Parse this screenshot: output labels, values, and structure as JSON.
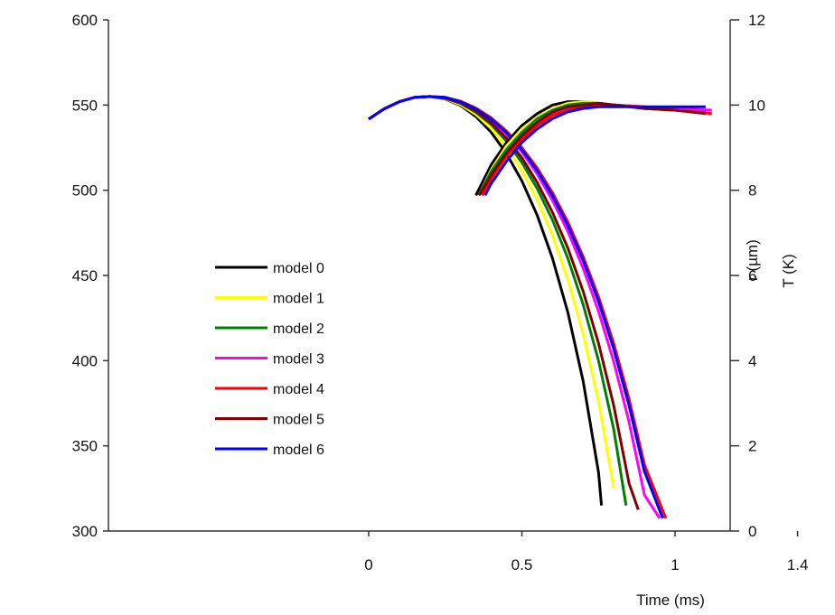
{
  "chart_data": {
    "type": "line",
    "xlabel": "Time (ms)",
    "ylabel_left": "",
    "ylabel_right": "r (µm)",
    "ylabel_right_2": "T (K)",
    "xlim": [
      0,
      1.4
    ],
    "ylim_left": [
      300,
      600
    ],
    "ylim_right": [
      0,
      12
    ],
    "x_ticks": [
      "0",
      "0.5",
      "1",
      "1.4"
    ],
    "y_left_ticks": [
      "300",
      "350",
      "400",
      "450",
      "500",
      "550",
      "600"
    ],
    "y_right_ticks": [
      "0",
      "2",
      "4",
      "6",
      "8",
      "10",
      "12"
    ],
    "legend": [
      "model 0",
      "model 1",
      "model 2",
      "model 3",
      "model 4",
      "model 5",
      "model 6"
    ],
    "colors": [
      "#000000",
      "#ffff00",
      "#008000",
      "#ff00ff",
      "#ff0000",
      "#800000",
      "#0000ff"
    ],
    "radius_axis": "right",
    "temperature_axis": "left",
    "radius_series": [
      {
        "name": "model 0",
        "x": [
          0,
          0.05,
          0.1,
          0.15,
          0.2,
          0.25,
          0.3,
          0.35,
          0.4,
          0.45,
          0.5,
          0.55,
          0.6,
          0.65,
          0.7,
          0.75,
          0.76
        ],
        "y": [
          9.67,
          9.91,
          10.08,
          10.18,
          10.2,
          10.14,
          9.99,
          9.73,
          9.36,
          8.86,
          8.22,
          7.41,
          6.4,
          5.13,
          3.52,
          1.38,
          0.6
        ]
      },
      {
        "name": "model 1",
        "x": [
          0,
          0.05,
          0.1,
          0.15,
          0.2,
          0.25,
          0.3,
          0.35,
          0.4,
          0.45,
          0.5,
          0.55,
          0.6,
          0.65,
          0.7,
          0.75,
          0.8
        ],
        "y": [
          9.67,
          9.91,
          10.08,
          10.18,
          10.2,
          10.15,
          10.01,
          9.78,
          9.45,
          9.02,
          8.46,
          7.78,
          6.93,
          5.9,
          4.63,
          3.05,
          1.0
        ]
      },
      {
        "name": "model 2",
        "x": [
          0,
          0.05,
          0.1,
          0.15,
          0.2,
          0.25,
          0.3,
          0.35,
          0.4,
          0.45,
          0.5,
          0.55,
          0.6,
          0.65,
          0.7,
          0.75,
          0.8,
          0.84
        ],
        "y": [
          9.67,
          9.91,
          10.08,
          10.18,
          10.2,
          10.16,
          10.04,
          9.83,
          9.54,
          9.15,
          8.65,
          8.04,
          7.3,
          6.4,
          5.32,
          4.0,
          2.38,
          0.6
        ]
      },
      {
        "name": "model 3",
        "x": [
          0,
          0.05,
          0.1,
          0.15,
          0.2,
          0.25,
          0.3,
          0.35,
          0.4,
          0.45,
          0.5,
          0.55,
          0.6,
          0.65,
          0.7,
          0.75,
          0.8,
          0.85,
          0.9,
          0.95
        ],
        "y": [
          9.67,
          9.91,
          10.08,
          10.18,
          10.2,
          10.17,
          10.07,
          9.9,
          9.65,
          9.32,
          8.9,
          8.38,
          7.76,
          7.03,
          6.17,
          5.16,
          3.97,
          2.56,
          0.85,
          0.3
        ]
      },
      {
        "name": "model 4",
        "x": [
          0,
          0.05,
          0.1,
          0.15,
          0.2,
          0.25,
          0.3,
          0.35,
          0.4,
          0.45,
          0.5,
          0.55,
          0.6,
          0.65,
          0.7,
          0.75,
          0.8,
          0.85,
          0.9,
          0.97
        ],
        "y": [
          9.67,
          9.91,
          10.08,
          10.18,
          10.2,
          10.18,
          10.09,
          9.93,
          9.7,
          9.39,
          9.0,
          8.52,
          7.94,
          7.25,
          6.44,
          5.5,
          4.4,
          3.1,
          1.56,
          0.3
        ]
      },
      {
        "name": "model 5",
        "x": [
          0,
          0.05,
          0.1,
          0.15,
          0.2,
          0.25,
          0.3,
          0.35,
          0.4,
          0.45,
          0.5,
          0.55,
          0.6,
          0.65,
          0.7,
          0.75,
          0.8,
          0.85,
          0.88
        ],
        "y": [
          9.67,
          9.91,
          10.08,
          10.18,
          10.2,
          10.16,
          10.05,
          9.86,
          9.58,
          9.22,
          8.76,
          8.18,
          7.48,
          6.64,
          5.63,
          4.41,
          2.94,
          1.12,
          0.5
        ]
      },
      {
        "name": "model 6",
        "x": [
          0,
          0.05,
          0.1,
          0.15,
          0.2,
          0.25,
          0.3,
          0.35,
          0.4,
          0.45,
          0.5,
          0.55,
          0.6,
          0.65,
          0.7,
          0.75,
          0.8,
          0.85,
          0.9,
          0.96
        ],
        "y": [
          9.67,
          9.91,
          10.08,
          10.18,
          10.2,
          10.18,
          10.08,
          9.91,
          9.67,
          9.35,
          8.95,
          8.46,
          7.87,
          7.17,
          6.35,
          5.39,
          4.27,
          2.95,
          1.4,
          0.3
        ]
      }
    ],
    "temperature_series": [
      {
        "name": "model 0",
        "x": [
          0.35,
          0.4,
          0.45,
          0.5,
          0.55,
          0.6,
          0.65,
          0.7,
          0.75,
          0.8,
          0.9,
          1.0,
          1.1
        ],
        "y": [
          497,
          515,
          528,
          538,
          545,
          550,
          552,
          552,
          551,
          550,
          548,
          547,
          546
        ]
      },
      {
        "name": "model 1",
        "x": [
          0.36,
          0.4,
          0.45,
          0.5,
          0.55,
          0.6,
          0.65,
          0.7,
          0.75,
          0.8,
          0.9,
          1.0,
          1.1
        ],
        "y": [
          497,
          512,
          526,
          536,
          543,
          548,
          551,
          552,
          551,
          550,
          548,
          547,
          546
        ]
      },
      {
        "name": "model 2",
        "x": [
          0.36,
          0.4,
          0.45,
          0.5,
          0.55,
          0.6,
          0.65,
          0.7,
          0.75,
          0.8,
          0.9,
          1.0,
          1.1
        ],
        "y": [
          497,
          511,
          524,
          534,
          542,
          547,
          550,
          551,
          551,
          550,
          548,
          547,
          546
        ]
      },
      {
        "name": "model 3",
        "x": [
          0.37,
          0.4,
          0.45,
          0.5,
          0.55,
          0.6,
          0.65,
          0.7,
          0.75,
          0.8,
          0.9,
          1.0,
          1.12
        ],
        "y": [
          497,
          508,
          521,
          531,
          539,
          545,
          548,
          550,
          550,
          550,
          549,
          548,
          547
        ]
      },
      {
        "name": "model 4",
        "x": [
          0.37,
          0.4,
          0.45,
          0.5,
          0.55,
          0.6,
          0.65,
          0.7,
          0.75,
          0.8,
          0.9,
          1.0,
          1.12
        ],
        "y": [
          497,
          507,
          520,
          530,
          538,
          544,
          547,
          549,
          550,
          550,
          549,
          547,
          545
        ]
      },
      {
        "name": "model 5",
        "x": [
          0.36,
          0.4,
          0.45,
          0.5,
          0.55,
          0.6,
          0.65,
          0.7,
          0.75,
          0.8,
          0.9,
          1.0,
          1.1
        ],
        "y": [
          497,
          509,
          522,
          532,
          540,
          546,
          549,
          550,
          551,
          550,
          548,
          547,
          545
        ]
      },
      {
        "name": "model 6",
        "x": [
          0.38,
          0.4,
          0.45,
          0.5,
          0.55,
          0.6,
          0.65,
          0.7,
          0.75,
          0.8,
          0.9,
          1.0,
          1.1
        ],
        "y": [
          497,
          504,
          517,
          528,
          536,
          542,
          546,
          548,
          549,
          549,
          549,
          549,
          549
        ]
      }
    ]
  }
}
